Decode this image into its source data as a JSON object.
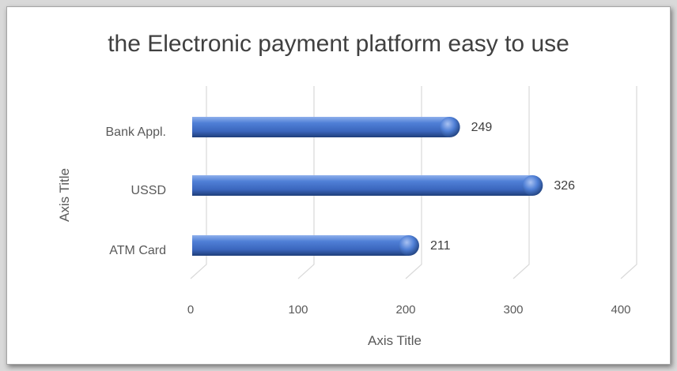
{
  "chart_data": {
    "type": "bar",
    "orientation": "horizontal",
    "title": "the Electronic payment platform easy to use",
    "xlabel": "Axis Title",
    "ylabel": "Axis Title",
    "categories": [
      "ATM Card",
      "USSD",
      "Bank Appl."
    ],
    "values": [
      211,
      326,
      249
    ],
    "xlim": [
      0,
      400
    ],
    "xticks": [
      0,
      100,
      200,
      300,
      400
    ],
    "data_labels": [
      "211",
      "326",
      "249"
    ],
    "grid": true,
    "legend": "none",
    "colors": {
      "bar": "#4472c4",
      "bar_dark": "#1f3f7a",
      "bar_light": "#8fb0ec"
    }
  }
}
